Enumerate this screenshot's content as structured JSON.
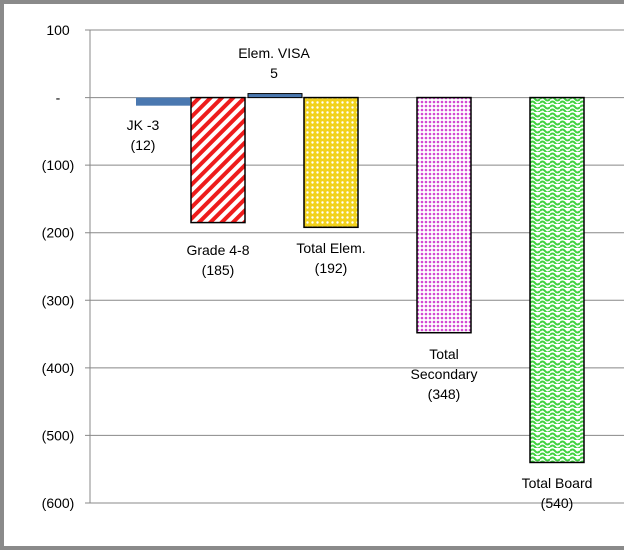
{
  "chart_data": {
    "type": "bar",
    "categories": [
      "JK -3",
      "Grade 4-8",
      "Elem. VISA",
      "Total Elem.",
      "Total Secondary",
      "Total Board"
    ],
    "values": [
      -12,
      -185,
      5,
      -192,
      -348,
      -540
    ],
    "data_labels": [
      [
        "JK -3",
        "(12)"
      ],
      [
        "Grade 4-8",
        "(185)"
      ],
      [
        "Elem. VISA",
        "5"
      ],
      [
        "Total Elem.",
        "(192)"
      ],
      [
        "Total",
        "Secondary",
        "(348)"
      ],
      [
        "Total Board",
        "(540)"
      ]
    ],
    "bar_styles": [
      {
        "fill": "#4a78b0",
        "pattern": "solid"
      },
      {
        "fill": "#ee1c1c",
        "pattern": "diagonal"
      },
      {
        "fill": "#4a78b0",
        "pattern": "solid"
      },
      {
        "fill": "#f2d21b",
        "pattern": "dots"
      },
      {
        "fill": "#d24ad2",
        "pattern": "dense-dots"
      },
      {
        "fill": "#3fd23f",
        "pattern": "wave"
      }
    ],
    "ylim": [
      -600,
      100
    ],
    "yticks": [
      100,
      0,
      -100,
      -200,
      -300,
      -400,
      -500,
      -600
    ],
    "ytick_labels": [
      "100",
      "-",
      "(100)",
      "(200)",
      "(300)",
      "(400)",
      "(500)",
      "(600)"
    ],
    "grid": true,
    "title": "",
    "xlabel": "",
    "ylabel": ""
  }
}
